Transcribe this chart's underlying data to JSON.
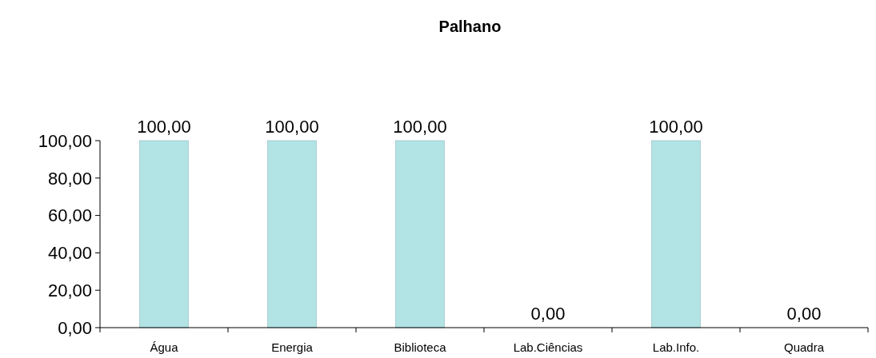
{
  "chart_data": {
    "type": "bar",
    "title": "Palhano",
    "categories": [
      "Água",
      "Energia",
      "Biblioteca",
      "Lab.Ciências",
      "Lab.Info.",
      "Quadra"
    ],
    "values": [
      100,
      100,
      100,
      0,
      100,
      0
    ],
    "value_labels": [
      "100,00",
      "100,00",
      "100,00",
      "0,00",
      "100,00",
      "0,00"
    ],
    "color": "#b2e4e6",
    "ylim": [
      0,
      100
    ],
    "yticks": [
      {
        "value": 0,
        "label": "0,00"
      },
      {
        "value": 20,
        "label": "20,00"
      },
      {
        "value": 40,
        "label": "40,00"
      },
      {
        "value": 60,
        "label": "60,00"
      },
      {
        "value": 80,
        "label": "80,00"
      },
      {
        "value": 100,
        "label": "100,00"
      }
    ],
    "grid": false
  }
}
